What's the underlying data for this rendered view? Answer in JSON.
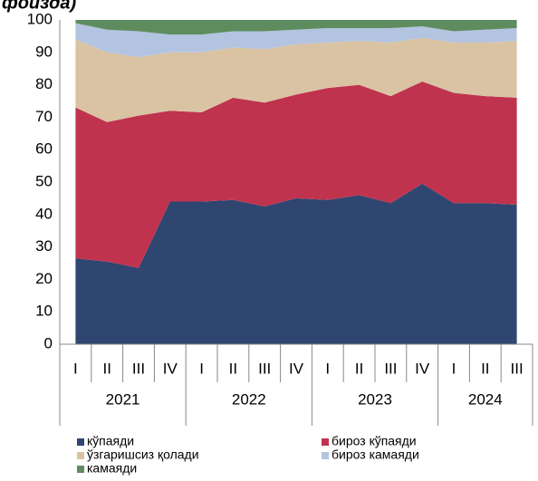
{
  "chart_data": {
    "type": "stacked_area",
    "title": "фоизда)",
    "categories": [
      "I",
      "II",
      "III",
      "IV",
      "I",
      "II",
      "III",
      "IV",
      "I",
      "II",
      "III",
      "IV",
      "I",
      "II",
      "III"
    ],
    "groups": [
      {
        "label": "2021",
        "size": 4
      },
      {
        "label": "2022",
        "size": 4
      },
      {
        "label": "2023",
        "size": 4
      },
      {
        "label": "2024",
        "size": 3
      }
    ],
    "series": [
      {
        "name": "кўпаяди",
        "color": "#2f4670",
        "values": [
          26.5,
          25.5,
          23.5,
          44,
          44,
          44.5,
          42.5,
          45,
          44.5,
          46,
          43.5,
          49.5,
          43.5,
          43.5,
          43
        ]
      },
      {
        "name": "бироз кўпаяди",
        "color": "#c0334f",
        "values": [
          46.5,
          43,
          47,
          28,
          27.5,
          31.5,
          32,
          32,
          34.5,
          34,
          33,
          31.5,
          34,
          33,
          33
        ]
      },
      {
        "name": "ўзгаришсиз қолади",
        "color": "#d9c3a3",
        "values": [
          21,
          21.5,
          18,
          18,
          18.5,
          15.5,
          16.5,
          15.5,
          14,
          13.5,
          16.5,
          13.5,
          15.5,
          16.5,
          17.5
        ]
      },
      {
        "name": "бироз камаяди",
        "color": "#b3c4e0",
        "values": [
          5,
          7,
          8,
          5.5,
          5.5,
          5,
          5.5,
          4.5,
          4.5,
          4,
          4.5,
          3.5,
          3.5,
          4,
          4
        ]
      },
      {
        "name": "камаяди",
        "color": "#5e8c5f",
        "values": [
          1,
          3,
          3.5,
          4.5,
          4.5,
          3.5,
          3.5,
          3,
          2.5,
          2.5,
          2.5,
          2,
          3.5,
          3,
          2.5
        ]
      }
    ],
    "ylim": [
      0,
      100
    ],
    "yticks": [
      0,
      10,
      20,
      30,
      40,
      50,
      60,
      70,
      80,
      90,
      100
    ],
    "grid": false
  }
}
